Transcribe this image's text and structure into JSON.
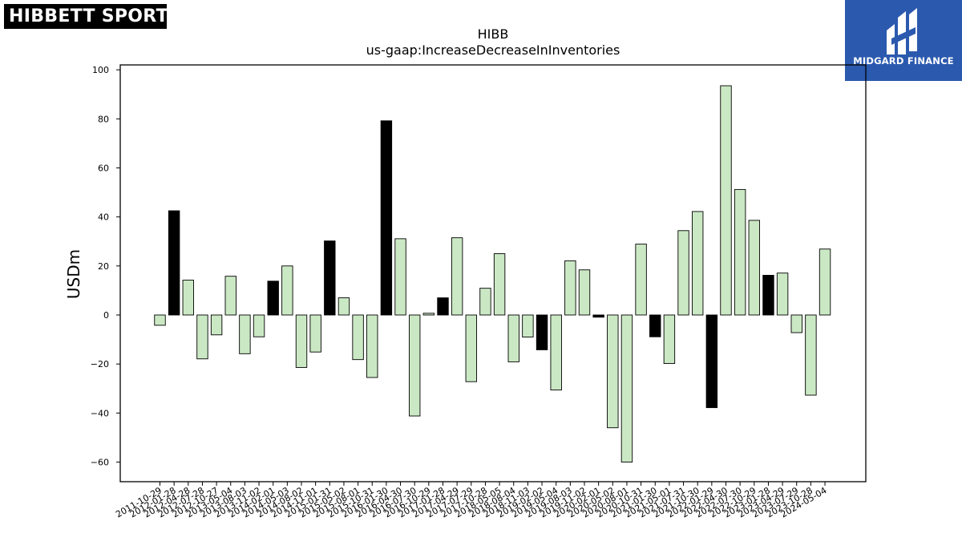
{
  "brand_left": {
    "text": "HIBBETT SPORTS",
    "symbol": "®"
  },
  "brand_right": {
    "text": "MIDGARD FINANCE"
  },
  "chart_data": {
    "type": "bar",
    "title": "HIBB",
    "subtitle": "us-gaap:IncreaseDecreaseInInventories",
    "xlabel": "",
    "ylabel": "USDm",
    "ylim": [
      -68,
      102
    ],
    "yticks": [
      -60,
      -40,
      -20,
      0,
      20,
      40,
      60,
      80,
      100
    ],
    "categories": [
      "2011-10-29",
      "2012-01-28",
      "2012-04-28",
      "2012-07-28",
      "2012-10-27",
      "2013-05-04",
      "2013-08-03",
      "2013-11-02",
      "2014-02-01",
      "2014-05-03",
      "2014-08-02",
      "2014-11-01",
      "2015-01-31",
      "2015-05-02",
      "2015-08-01",
      "2015-10-31",
      "2016-01-30",
      "2016-04-30",
      "2016-07-30",
      "2016-10-29",
      "2017-01-28",
      "2017-04-29",
      "2017-07-29",
      "2017-10-28",
      "2018-05-05",
      "2018-08-04",
      "2018-11-03",
      "2019-02-02",
      "2019-05-04",
      "2019-08-03",
      "2019-11-02",
      "2020-02-01",
      "2020-05-02",
      "2020-08-01",
      "2020-10-31",
      "2021-01-30",
      "2021-05-01",
      "2021-07-31",
      "2021-10-30",
      "2022-01-29",
      "2022-04-30",
      "2022-07-30",
      "2022-10-29",
      "2023-01-28",
      "2023-04-29",
      "2023-07-29",
      "2023-10-28",
      "2024-05-04"
    ],
    "values": [
      -4.2,
      42.5,
      14.2,
      -17.9,
      -8.1,
      15.8,
      -15.8,
      -8.9,
      13.8,
      20.0,
      -21.4,
      -15.1,
      30.2,
      7.0,
      -18.2,
      -25.5,
      79.2,
      31.1,
      -41.2,
      0.7,
      7.0,
      31.5,
      -27.2,
      10.9,
      25.0,
      -19.1,
      -9.0,
      -14.2,
      -30.6,
      22.1,
      18.4,
      -0.9,
      -46.0,
      -60.0,
      28.9,
      -8.9,
      -19.8,
      34.4,
      42.2,
      -37.8,
      93.5,
      51.2,
      38.6,
      16.2,
      17.1,
      -7.2,
      -32.7,
      26.9
    ],
    "highlighted": [
      false,
      true,
      false,
      false,
      false,
      false,
      false,
      false,
      true,
      false,
      false,
      false,
      true,
      false,
      false,
      false,
      true,
      false,
      false,
      false,
      true,
      false,
      false,
      false,
      false,
      false,
      false,
      true,
      false,
      false,
      false,
      true,
      false,
      false,
      false,
      true,
      false,
      false,
      false,
      true,
      false,
      false,
      false,
      true,
      false,
      false,
      false,
      false
    ],
    "colors": {
      "bar": "#cbe8c4",
      "highlight": "#000000",
      "edge": "#000000"
    },
    "grid": false,
    "legend": "none"
  }
}
